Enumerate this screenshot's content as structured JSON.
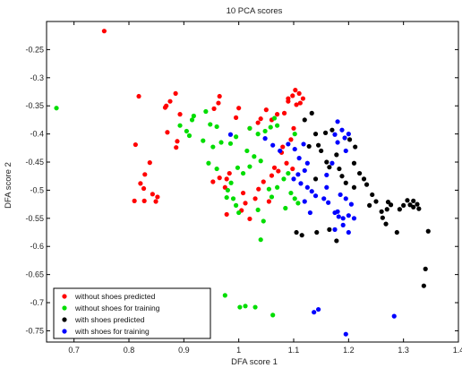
{
  "chart_data": {
    "type": "scatter",
    "title": "10 PCA scores",
    "xlabel": "DFA score 1",
    "ylabel": "DFA score 2",
    "xlim": [
      0.65,
      1.4
    ],
    "ylim": [
      -0.77,
      -0.2
    ],
    "xticks": [
      "0.7",
      "0.8",
      "0.9",
      "1",
      "1.1",
      "1.2",
      "1.3",
      "1.4"
    ],
    "yticks": [
      "-0.25",
      "-0.3",
      "-0.35",
      "-0.4",
      "-0.45",
      "-0.5",
      "-0.55",
      "-0.6",
      "-0.65",
      "-0.7",
      "-0.75"
    ],
    "grid": false,
    "legend_position": "bottom-left",
    "series": [
      {
        "name": "without shoes predicted",
        "color": "#ff0000",
        "points": [
          [
            0.755,
            -0.217
          ],
          [
            0.818,
            -0.333
          ],
          [
            0.885,
            -0.328
          ],
          [
            0.875,
            -0.342
          ],
          [
            0.868,
            -0.35
          ],
          [
            0.866,
            -0.353
          ],
          [
            0.893,
            -0.365
          ],
          [
            0.87,
            -0.397
          ],
          [
            0.888,
            -0.413
          ],
          [
            0.886,
            -0.424
          ],
          [
            0.812,
            -0.419
          ],
          [
            0.838,
            -0.451
          ],
          [
            0.829,
            -0.472
          ],
          [
            0.821,
            -0.488
          ],
          [
            0.827,
            -0.497
          ],
          [
            0.843,
            -0.507
          ],
          [
            0.852,
            -0.512
          ],
          [
            0.849,
            -0.52
          ],
          [
            0.828,
            -0.519
          ],
          [
            0.81,
            -0.519
          ],
          [
            0.965,
            -0.333
          ],
          [
            0.963,
            -0.345
          ],
          [
            0.955,
            -0.355
          ],
          [
            1.0,
            -0.354
          ],
          [
            0.995,
            -0.371
          ],
          [
            1.035,
            -0.38
          ],
          [
            1.04,
            -0.373
          ],
          [
            1.05,
            -0.357
          ],
          [
            1.09,
            -0.342
          ],
          [
            1.09,
            -0.337
          ],
          [
            1.098,
            -0.332
          ],
          [
            1.103,
            -0.322
          ],
          [
            1.11,
            -0.328
          ],
          [
            1.117,
            -0.337
          ],
          [
            1.112,
            -0.345
          ],
          [
            1.105,
            -0.348
          ],
          [
            1.083,
            -0.363
          ],
          [
            1.07,
            -0.365
          ],
          [
            1.06,
            -0.375
          ],
          [
            1.02,
            -0.39
          ],
          [
            1.1,
            -0.39
          ],
          [
            1.095,
            -0.41
          ],
          [
            1.08,
            -0.423
          ],
          [
            1.078,
            -0.433
          ],
          [
            1.087,
            -0.452
          ],
          [
            1.098,
            -0.462
          ],
          [
            1.072,
            -0.466
          ],
          [
            1.06,
            -0.474
          ],
          [
            1.045,
            -0.485
          ],
          [
            1.036,
            -0.498
          ],
          [
            0.983,
            -0.47
          ],
          [
            0.978,
            -0.48
          ],
          [
            0.965,
            -0.478
          ],
          [
            0.953,
            -0.485
          ],
          [
            0.975,
            -0.495
          ],
          [
            1.008,
            -0.505
          ],
          [
            1.03,
            -0.515
          ],
          [
            1.012,
            -0.523
          ],
          [
            1.005,
            -0.536
          ],
          [
            1.02,
            -0.551
          ],
          [
            0.978,
            -0.543
          ],
          [
            1.055,
            -0.52
          ],
          [
            1.065,
            -0.46
          ]
        ]
      },
      {
        "name": "without shoes for training",
        "color": "#00dd00",
        "points": [
          [
            0.668,
            -0.354
          ],
          [
            0.893,
            -0.385
          ],
          [
            0.915,
            -0.375
          ],
          [
            0.918,
            -0.368
          ],
          [
            0.94,
            -0.36
          ],
          [
            0.948,
            -0.383
          ],
          [
            0.96,
            -0.387
          ],
          [
            0.905,
            -0.395
          ],
          [
            0.91,
            -0.403
          ],
          [
            0.935,
            -0.412
          ],
          [
            0.953,
            -0.423
          ],
          [
            0.968,
            -0.415
          ],
          [
            0.985,
            -0.417
          ],
          [
            0.995,
            -0.405
          ],
          [
            1.02,
            -0.39
          ],
          [
            1.035,
            -0.4
          ],
          [
            1.048,
            -0.395
          ],
          [
            1.058,
            -0.388
          ],
          [
            1.07,
            -0.385
          ],
          [
            1.065,
            -0.372
          ],
          [
            1.015,
            -0.43
          ],
          [
            1.028,
            -0.44
          ],
          [
            1.04,
            -0.448
          ],
          [
            1.02,
            -0.458
          ],
          [
            1.008,
            -0.47
          ],
          [
            0.998,
            -0.46
          ],
          [
            0.945,
            -0.452
          ],
          [
            0.96,
            -0.462
          ],
          [
            0.986,
            -0.487
          ],
          [
            0.98,
            -0.5
          ],
          [
            0.978,
            -0.513
          ],
          [
            0.99,
            -0.515
          ],
          [
            0.995,
            -0.527
          ],
          [
            1.0,
            -0.54
          ],
          [
            1.035,
            -0.535
          ],
          [
            1.045,
            -0.555
          ],
          [
            1.04,
            -0.588
          ],
          [
            1.06,
            -0.512
          ],
          [
            1.055,
            -0.498
          ],
          [
            1.07,
            -0.495
          ],
          [
            1.082,
            -0.48
          ],
          [
            1.09,
            -0.47
          ],
          [
            1.095,
            -0.505
          ],
          [
            1.102,
            -0.515
          ],
          [
            1.108,
            -0.523
          ],
          [
            1.085,
            -0.532
          ],
          [
            1.102,
            -0.4
          ],
          [
            0.975,
            -0.687
          ],
          [
            1.002,
            -0.708
          ],
          [
            1.012,
            -0.706
          ],
          [
            1.03,
            -0.708
          ],
          [
            1.062,
            -0.722
          ]
        ]
      },
      {
        "name": "with shoes predicted",
        "color": "#000000",
        "points": [
          [
            1.12,
            -0.375
          ],
          [
            1.133,
            -0.363
          ],
          [
            1.14,
            -0.4
          ],
          [
            1.158,
            -0.398
          ],
          [
            1.17,
            -0.393
          ],
          [
            1.145,
            -0.42
          ],
          [
            1.128,
            -0.422
          ],
          [
            1.15,
            -0.43
          ],
          [
            1.178,
            -0.437
          ],
          [
            1.165,
            -0.459
          ],
          [
            1.183,
            -0.462
          ],
          [
            1.188,
            -0.475
          ],
          [
            1.195,
            -0.487
          ],
          [
            1.21,
            -0.495
          ],
          [
            1.22,
            -0.47
          ],
          [
            1.212,
            -0.423
          ],
          [
            1.202,
            -0.41
          ],
          [
            1.228,
            -0.48
          ],
          [
            1.233,
            -0.49
          ],
          [
            1.243,
            -0.508
          ],
          [
            1.25,
            -0.52
          ],
          [
            1.238,
            -0.527
          ],
          [
            1.26,
            -0.538
          ],
          [
            1.262,
            -0.549
          ],
          [
            1.268,
            -0.56
          ],
          [
            1.27,
            -0.534
          ],
          [
            1.272,
            -0.521
          ],
          [
            1.277,
            -0.526
          ],
          [
            1.293,
            -0.534
          ],
          [
            1.3,
            -0.527
          ],
          [
            1.307,
            -0.518
          ],
          [
            1.312,
            -0.526
          ],
          [
            1.318,
            -0.53
          ],
          [
            1.325,
            -0.525
          ],
          [
            1.328,
            -0.533
          ],
          [
            1.318,
            -0.519
          ],
          [
            1.345,
            -0.573
          ],
          [
            1.34,
            -0.64
          ],
          [
            1.337,
            -0.67
          ],
          [
            1.288,
            -0.575
          ],
          [
            1.178,
            -0.59
          ],
          [
            1.165,
            -0.57
          ],
          [
            1.142,
            -0.575
          ],
          [
            1.105,
            -0.575
          ],
          [
            1.115,
            -0.58
          ],
          [
            1.16,
            -0.45
          ],
          [
            1.14,
            -0.48
          ],
          [
            1.21,
            -0.452
          ]
        ]
      },
      {
        "name": "with shoes for training",
        "color": "#0000ff",
        "points": [
          [
            0.985,
            -0.401
          ],
          [
            1.048,
            -0.408
          ],
          [
            1.062,
            -0.42
          ],
          [
            1.075,
            -0.43
          ],
          [
            1.09,
            -0.418
          ],
          [
            1.102,
            -0.427
          ],
          [
            1.118,
            -0.418
          ],
          [
            1.11,
            -0.443
          ],
          [
            1.125,
            -0.452
          ],
          [
            1.12,
            -0.465
          ],
          [
            1.108,
            -0.472
          ],
          [
            1.1,
            -0.48
          ],
          [
            1.113,
            -0.488
          ],
          [
            1.125,
            -0.495
          ],
          [
            1.133,
            -0.502
          ],
          [
            1.14,
            -0.51
          ],
          [
            1.155,
            -0.515
          ],
          [
            1.163,
            -0.522
          ],
          [
            1.175,
            -0.54
          ],
          [
            1.182,
            -0.547
          ],
          [
            1.19,
            -0.55
          ],
          [
            1.2,
            -0.545
          ],
          [
            1.21,
            -0.55
          ],
          [
            1.205,
            -0.525
          ],
          [
            1.195,
            -0.515
          ],
          [
            1.185,
            -0.508
          ],
          [
            1.18,
            -0.378
          ],
          [
            1.188,
            -0.393
          ],
          [
            1.175,
            -0.401
          ],
          [
            1.193,
            -0.407
          ],
          [
            1.2,
            -0.4
          ],
          [
            1.18,
            -0.415
          ],
          [
            1.195,
            -0.43
          ],
          [
            1.17,
            -0.452
          ],
          [
            1.16,
            -0.473
          ],
          [
            1.18,
            -0.538
          ],
          [
            1.19,
            -0.562
          ],
          [
            1.175,
            -0.57
          ],
          [
            1.2,
            -0.575
          ],
          [
            1.12,
            -0.52
          ],
          [
            1.13,
            -0.54
          ],
          [
            1.16,
            -0.495
          ],
          [
            1.137,
            -0.717
          ],
          [
            1.145,
            -0.712
          ],
          [
            1.195,
            -0.756
          ],
          [
            1.283,
            -0.724
          ]
        ]
      }
    ]
  }
}
